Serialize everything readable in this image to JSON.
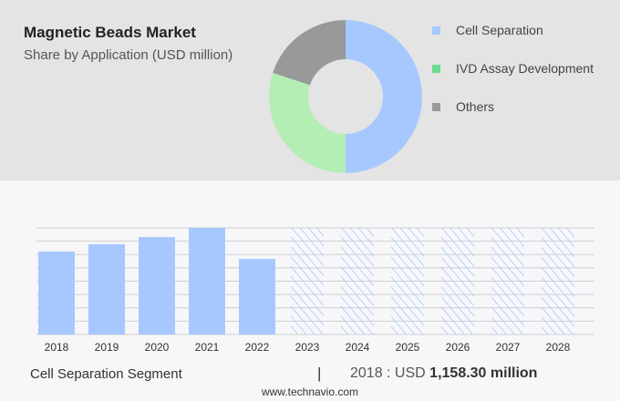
{
  "chart_data": [
    {
      "type": "pie",
      "title": "Magnetic Beads Market",
      "subtitle": "Share by Application (USD million)",
      "donut": true,
      "slices": [
        {
          "label": "Cell Separation",
          "value": 50,
          "color": "#a6c8ff"
        },
        {
          "label": "IVD Assay Development",
          "value": 30,
          "color": "#b5eeb5"
        },
        {
          "label": "Others",
          "value": 20,
          "color": "#999999"
        }
      ],
      "legend_colors": [
        "#a6c8ff",
        "#6fdc8c",
        "#999999"
      ],
      "legend": "right"
    },
    {
      "type": "bar",
      "categories": [
        "2018",
        "2019",
        "2020",
        "2021",
        "2022",
        "2023",
        "2024",
        "2025",
        "2026",
        "2027",
        "2028"
      ],
      "values": [
        1158.3,
        1260,
        1362,
        1490,
        1056,
        null,
        null,
        null,
        null,
        null,
        null
      ],
      "forecast": [
        false,
        false,
        false,
        false,
        false,
        true,
        true,
        true,
        true,
        true,
        true
      ],
      "ylim": [
        0,
        1490
      ],
      "grid": true,
      "color": "#a6c8ff",
      "segment_label": "Cell Separation Segment",
      "separator": "|",
      "highlight_prefix": "2018 : USD",
      "highlight_value": "1,158.30 million"
    }
  ],
  "footer": "www.technavio.com"
}
